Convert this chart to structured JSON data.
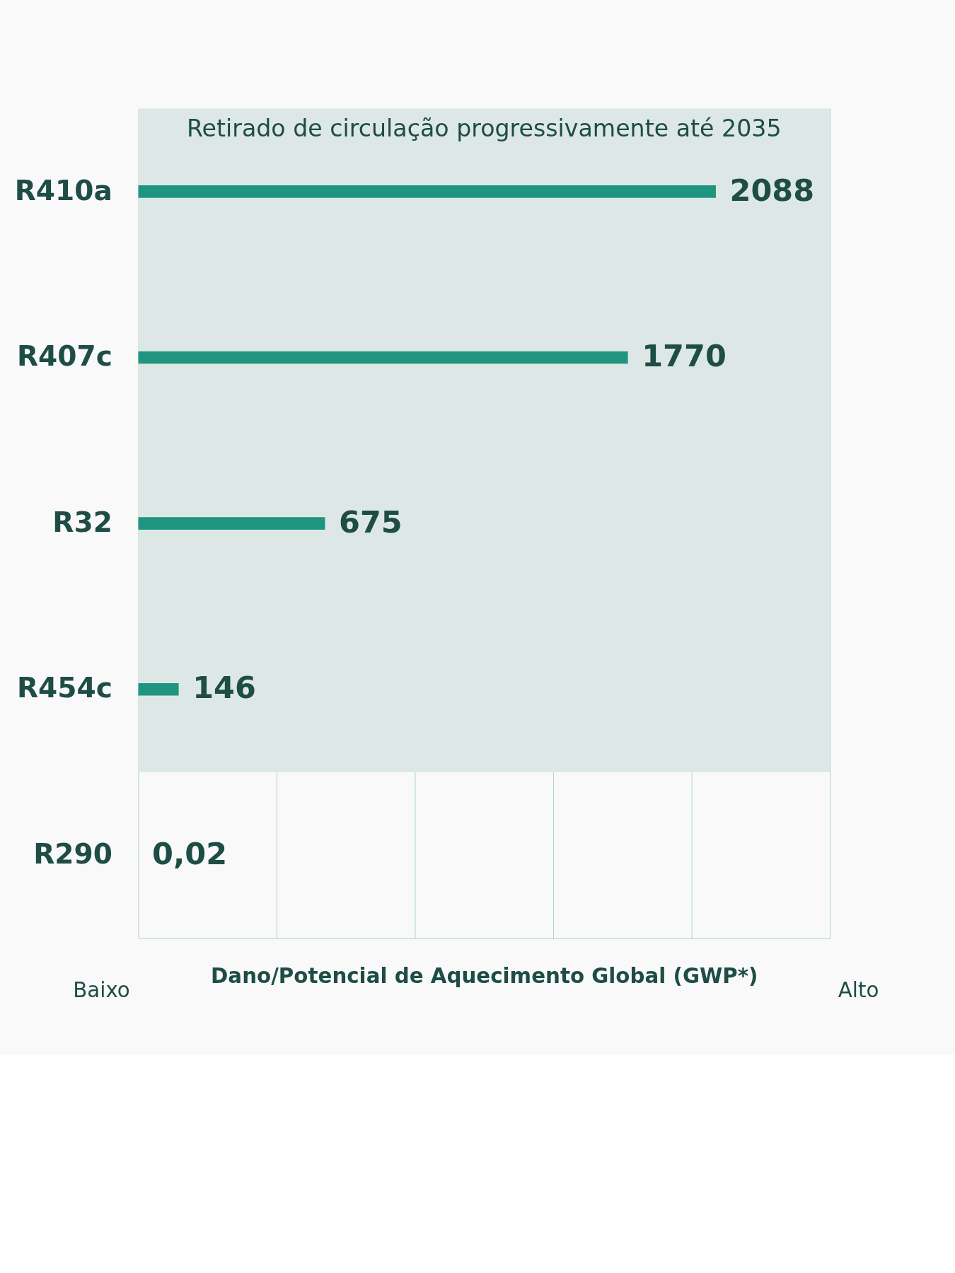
{
  "chart_data": {
    "type": "bar",
    "orientation": "horizontal",
    "categories": [
      "R410a",
      "R407c",
      "R32",
      "R454c",
      "R290"
    ],
    "values": [
      2088,
      1770,
      675,
      146,
      0.02
    ],
    "value_labels": [
      "2088",
      "1770",
      "675",
      "146",
      "0,02"
    ],
    "color": "#1f9580",
    "xlabel": "Dano/Potencial de Aquecimento Global (GWP*)",
    "annotations": [
      "Baixo",
      "Alto"
    ],
    "xlim": [
      0,
      2500
    ],
    "xticks": [
      {
        "value": 0,
        "label": null
      },
      {
        "value": 500,
        "label": null
      },
      {
        "value": 1000,
        "label": null
      },
      {
        "value": 1500,
        "label": null
      },
      {
        "value": 2000,
        "label": null
      },
      {
        "value": 2500,
        "label": null
      }
    ],
    "grid": "x",
    "tick_labels": "y",
    "bands": [
      {
        "axis": "y",
        "from": "R410a",
        "to": "R454c",
        "label": "Retirado de circulação progressivamente até 2035",
        "color": "#dde8e6"
      }
    ]
  }
}
